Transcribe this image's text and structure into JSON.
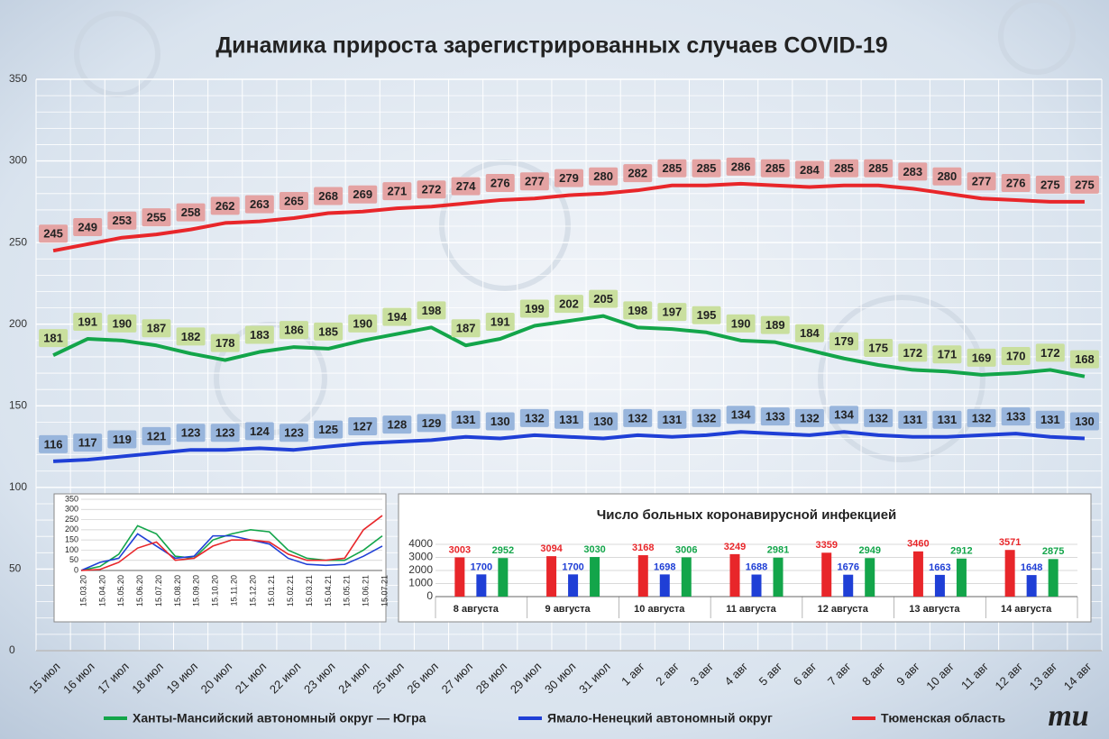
{
  "chart_data": [
    {
      "type": "line",
      "title": "Динамика прироста зарегистрированных случаев COVID-19",
      "categories": [
        "15 июл",
        "16 июл",
        "17 июл",
        "18 июл",
        "19 июл",
        "20 июл",
        "21 июл",
        "22 июл",
        "23 июл",
        "24 июл",
        "25 июл",
        "26 июл",
        "27 июл",
        "28 июл",
        "29 июл",
        "30 июл",
        "31 июл",
        "1 авг",
        "2 авг",
        "3 авг",
        "4 авг",
        "5 авг",
        "6 авг",
        "7 авг",
        "8 авг",
        "9 авг",
        "10 авг",
        "11 авг",
        "12 авг",
        "13 авг",
        "14 авг"
      ],
      "series": [
        {
          "name": "Ханты-Мансийский автономный округ — Югра",
          "color": "#13a54a",
          "label_bg": "#c9df9e",
          "values": [
            181,
            191,
            190,
            187,
            182,
            178,
            183,
            186,
            185,
            190,
            194,
            198,
            187,
            191,
            199,
            202,
            205,
            198,
            197,
            195,
            190,
            189,
            184,
            179,
            175,
            172,
            171,
            169,
            170,
            172,
            168
          ]
        },
        {
          "name": "Ямало-Ненецкий автономный округ",
          "color": "#1f3fd6",
          "label_bg": "#98b5dc",
          "values": [
            116,
            117,
            119,
            121,
            123,
            123,
            124,
            123,
            125,
            127,
            128,
            129,
            131,
            130,
            132,
            131,
            130,
            132,
            131,
            132,
            134,
            133,
            132,
            134,
            132,
            131,
            131,
            132,
            133,
            131,
            130
          ]
        },
        {
          "name": "Тюменская область",
          "color": "#e8262a",
          "label_bg": "#e4a3a3",
          "values": [
            245,
            249,
            253,
            255,
            258,
            262,
            263,
            265,
            268,
            269,
            271,
            272,
            274,
            276,
            277,
            279,
            280,
            282,
            285,
            285,
            286,
            285,
            284,
            285,
            285,
            283,
            280,
            277,
            276,
            275,
            275
          ]
        }
      ],
      "ylim": [
        0,
        350
      ],
      "yticks": [
        0,
        50,
        100,
        150,
        200,
        250,
        300,
        350
      ],
      "grid": true,
      "legend": "bottom"
    },
    {
      "type": "line",
      "categories": [
        "15.03.20",
        "15.04.20",
        "15.05.20",
        "15.06.20",
        "15.07.20",
        "15.08.20",
        "15.09.20",
        "15.10.20",
        "15.11.20",
        "15.12.20",
        "15.01.21",
        "15.02.21",
        "15.03.21",
        "15.04.21",
        "15.05.21",
        "15.06.21",
        "15.07.21"
      ],
      "series": [
        {
          "color": "#13a54a",
          "values": [
            0,
            20,
            80,
            220,
            180,
            70,
            60,
            150,
            180,
            200,
            190,
            100,
            60,
            50,
            50,
            100,
            170
          ]
        },
        {
          "color": "#1f3fd6",
          "values": [
            0,
            40,
            60,
            180,
            120,
            60,
            70,
            170,
            170,
            150,
            130,
            60,
            30,
            25,
            30,
            70,
            120
          ]
        },
        {
          "color": "#e8262a",
          "values": [
            0,
            5,
            40,
            110,
            140,
            50,
            60,
            120,
            150,
            150,
            140,
            80,
            50,
            50,
            60,
            200,
            270
          ]
        }
      ],
      "ylim": [
        0,
        350
      ],
      "yticks": [
        0,
        50,
        100,
        150,
        200,
        250,
        300,
        350
      ],
      "grid": true
    },
    {
      "type": "bar",
      "title": "Число больных коронавирусной  инфекцией",
      "categories": [
        "8 августа",
        "9 августа",
        "10 августа",
        "11 августа",
        "12 августа",
        "13 августа",
        "14 августа"
      ],
      "series": [
        {
          "color": "#e8262a",
          "values": [
            3003,
            3094,
            3168,
            3249,
            3359,
            3460,
            3571
          ]
        },
        {
          "color": "#1f3fd6",
          "values": [
            1700,
            1700,
            1698,
            1688,
            1676,
            1663,
            1648
          ]
        },
        {
          "color": "#13a54a",
          "values": [
            2952,
            3030,
            3006,
            2981,
            2949,
            2912,
            2875
          ]
        }
      ],
      "ylim": [
        0,
        4000
      ],
      "yticks": [
        0,
        1000,
        2000,
        3000,
        4000
      ],
      "grid": true
    }
  ],
  "logo": "mu"
}
